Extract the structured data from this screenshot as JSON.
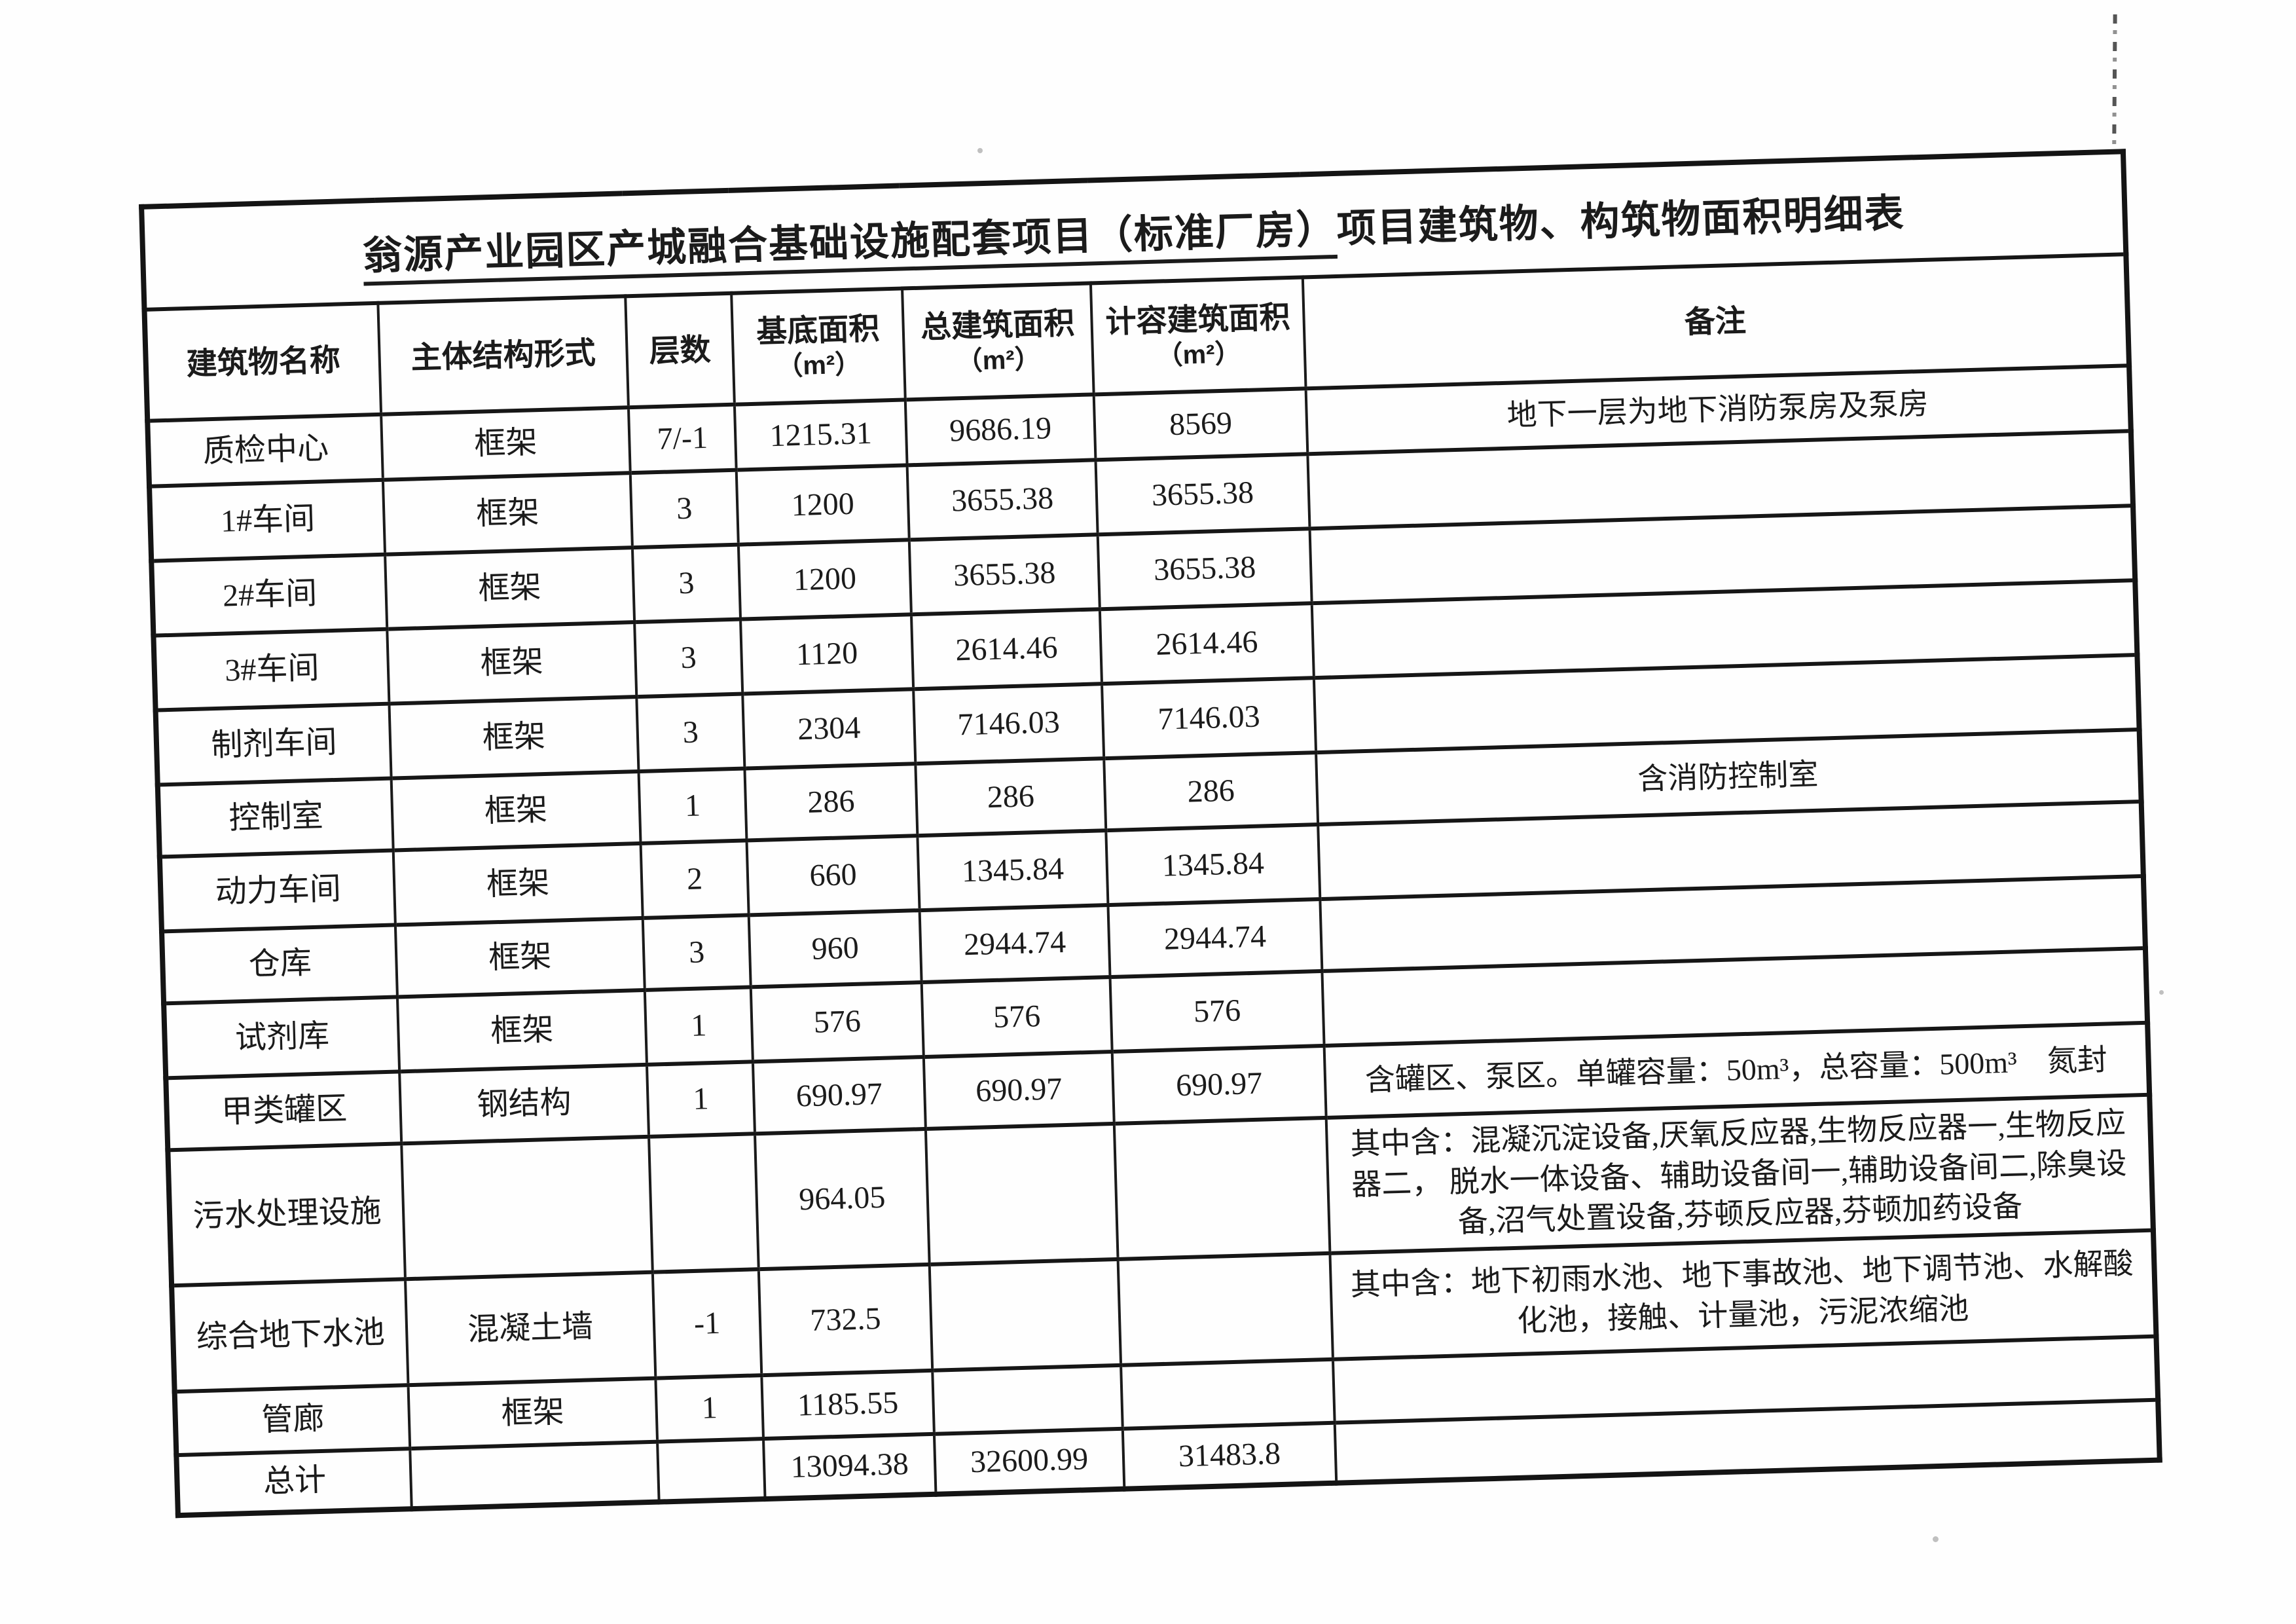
{
  "colors": {
    "paper": "#fefefe",
    "ink": "#1b1b1b",
    "border": "#161616"
  },
  "table": {
    "title": {
      "underlined_part": "翁源产业园区产城融合基础设施配套项目（标准厂房）",
      "plain_part": "项目建筑物、构筑物面积明细表"
    },
    "columns": [
      {
        "label": "建筑物名称"
      },
      {
        "label": "主体结构形式"
      },
      {
        "label": "层数"
      },
      {
        "label": "基底面积",
        "unit": "（m²）"
      },
      {
        "label": "总建筑面积",
        "unit": "（m²）"
      },
      {
        "label": "计容建筑面积",
        "unit": "（m²）"
      },
      {
        "label": "备注"
      }
    ],
    "rows": [
      {
        "name": "质检中心",
        "structure": "框架",
        "floors": "7/-1",
        "base_area": "1215.31",
        "total_area": "9686.19",
        "capacity_area": "8569",
        "remark": "地下一层为地下消防泵房及泵房"
      },
      {
        "name": "1#车间",
        "structure": "框架",
        "floors": "3",
        "base_area": "1200",
        "total_area": "3655.38",
        "capacity_area": "3655.38",
        "remark": ""
      },
      {
        "name": "2#车间",
        "structure": "框架",
        "floors": "3",
        "base_area": "1200",
        "total_area": "3655.38",
        "capacity_area": "3655.38",
        "remark": ""
      },
      {
        "name": "3#车间",
        "structure": "框架",
        "floors": "3",
        "base_area": "1120",
        "total_area": "2614.46",
        "capacity_area": "2614.46",
        "remark": ""
      },
      {
        "name": "制剂车间",
        "structure": "框架",
        "floors": "3",
        "base_area": "2304",
        "total_area": "7146.03",
        "capacity_area": "7146.03",
        "remark": ""
      },
      {
        "name": "控制室",
        "structure": "框架",
        "floors": "1",
        "base_area": "286",
        "total_area": "286",
        "capacity_area": "286",
        "remark": "含消防控制室"
      },
      {
        "name": "动力车间",
        "structure": "框架",
        "floors": "2",
        "base_area": "660",
        "total_area": "1345.84",
        "capacity_area": "1345.84",
        "remark": ""
      },
      {
        "name": "仓库",
        "structure": "框架",
        "floors": "3",
        "base_area": "960",
        "total_area": "2944.74",
        "capacity_area": "2944.74",
        "remark": ""
      },
      {
        "name": "试剂库",
        "structure": "框架",
        "floors": "1",
        "base_area": "576",
        "total_area": "576",
        "capacity_area": "576",
        "remark": ""
      },
      {
        "name": "甲类罐区",
        "structure": "钢结构",
        "floors": "1",
        "base_area": "690.97",
        "total_area": "690.97",
        "capacity_area": "690.97",
        "remark": "含罐区、泵区。单罐容量：50m³，总容量：500m³　氮封"
      },
      {
        "name": "污水处理设施",
        "structure": "",
        "floors": "",
        "base_area": "964.05",
        "total_area": "",
        "capacity_area": "",
        "remark": "其中含：混凝沉淀设备,厌氧反应器,生物反应器一,生物反应器二， 脱水一体设备、辅助设备间一,辅助设备间二,除臭设备,沼气处置设备,芬顿反应器,芬顿加药设备"
      },
      {
        "name": "综合地下水池",
        "structure": "混凝土墙",
        "floors": "-1",
        "base_area": "732.5",
        "total_area": "",
        "capacity_area": "",
        "remark": "其中含：地下初雨水池、地下事故池、地下调节池、水解酸化池，接触、计量池，污泥浓缩池"
      },
      {
        "name": "管廊",
        "structure": "框架",
        "floors": "1",
        "base_area": "1185.55",
        "total_area": "",
        "capacity_area": "",
        "remark": ""
      },
      {
        "name": "总计",
        "structure": "",
        "floors": "",
        "base_area": "13094.38",
        "total_area": "32600.99",
        "capacity_area": "31483.8",
        "remark": ""
      }
    ]
  }
}
